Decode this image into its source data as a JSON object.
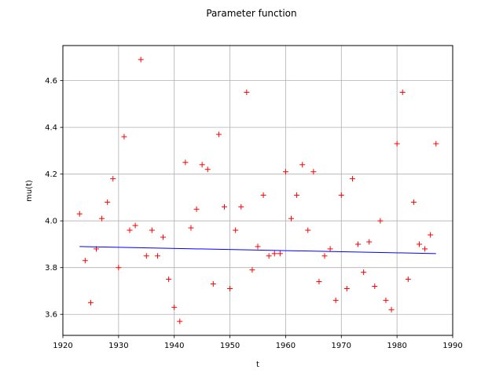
{
  "chart_data": {
    "type": "scatter",
    "title": "Parameter function",
    "xlabel": "t",
    "ylabel": "mu(t)",
    "xlim": [
      1920,
      1990
    ],
    "ylim": [
      3.51,
      4.75
    ],
    "xticks": [
      "1920",
      "1930",
      "1940",
      "1950",
      "1960",
      "1970",
      "1980",
      "1990"
    ],
    "yticks": [
      "3.6",
      "3.8",
      "4.0",
      "4.2",
      "4.4",
      "4.6"
    ],
    "grid": true,
    "colors": {
      "points": "#ff0000",
      "line": "#0000ff"
    },
    "series": [
      {
        "type": "scatter",
        "marker": "plus",
        "x": [
          1923,
          1924,
          1925,
          1926,
          1927,
          1928,
          1929,
          1930,
          1931,
          1932,
          1933,
          1934,
          1935,
          1936,
          1937,
          1938,
          1939,
          1940,
          1941,
          1942,
          1943,
          1944,
          1945,
          1946,
          1947,
          1948,
          1949,
          1950,
          1951,
          1952,
          1953,
          1954,
          1955,
          1956,
          1957,
          1958,
          1959,
          1960,
          1961,
          1962,
          1963,
          1964,
          1965,
          1966,
          1967,
          1968,
          1969,
          1970,
          1971,
          1972,
          1973,
          1974,
          1975,
          1976,
          1977,
          1978,
          1979,
          1980,
          1981,
          1982,
          1983,
          1984,
          1985,
          1986,
          1987
        ],
        "y": [
          4.03,
          3.83,
          3.65,
          3.88,
          4.01,
          4.08,
          4.18,
          3.8,
          4.36,
          3.96,
          3.98,
          4.69,
          3.85,
          3.96,
          3.85,
          3.93,
          3.75,
          3.63,
          3.57,
          4.25,
          3.97,
          4.05,
          4.24,
          4.22,
          3.73,
          4.37,
          4.06,
          3.71,
          3.96,
          4.06,
          4.55,
          3.79,
          3.89,
          4.11,
          3.85,
          3.86,
          3.86,
          4.21,
          4.01,
          4.11,
          4.24,
          3.96,
          4.21,
          3.74,
          3.85,
          3.88,
          3.66,
          4.11,
          3.71,
          4.18,
          3.9,
          3.78,
          3.91,
          3.72,
          4.0,
          3.66,
          3.62,
          4.33,
          4.55,
          3.75,
          4.08,
          3.9,
          3.88,
          3.94,
          4.33
        ]
      },
      {
        "type": "line",
        "x": [
          1923,
          1987
        ],
        "y": [
          3.89,
          3.86
        ]
      }
    ]
  }
}
